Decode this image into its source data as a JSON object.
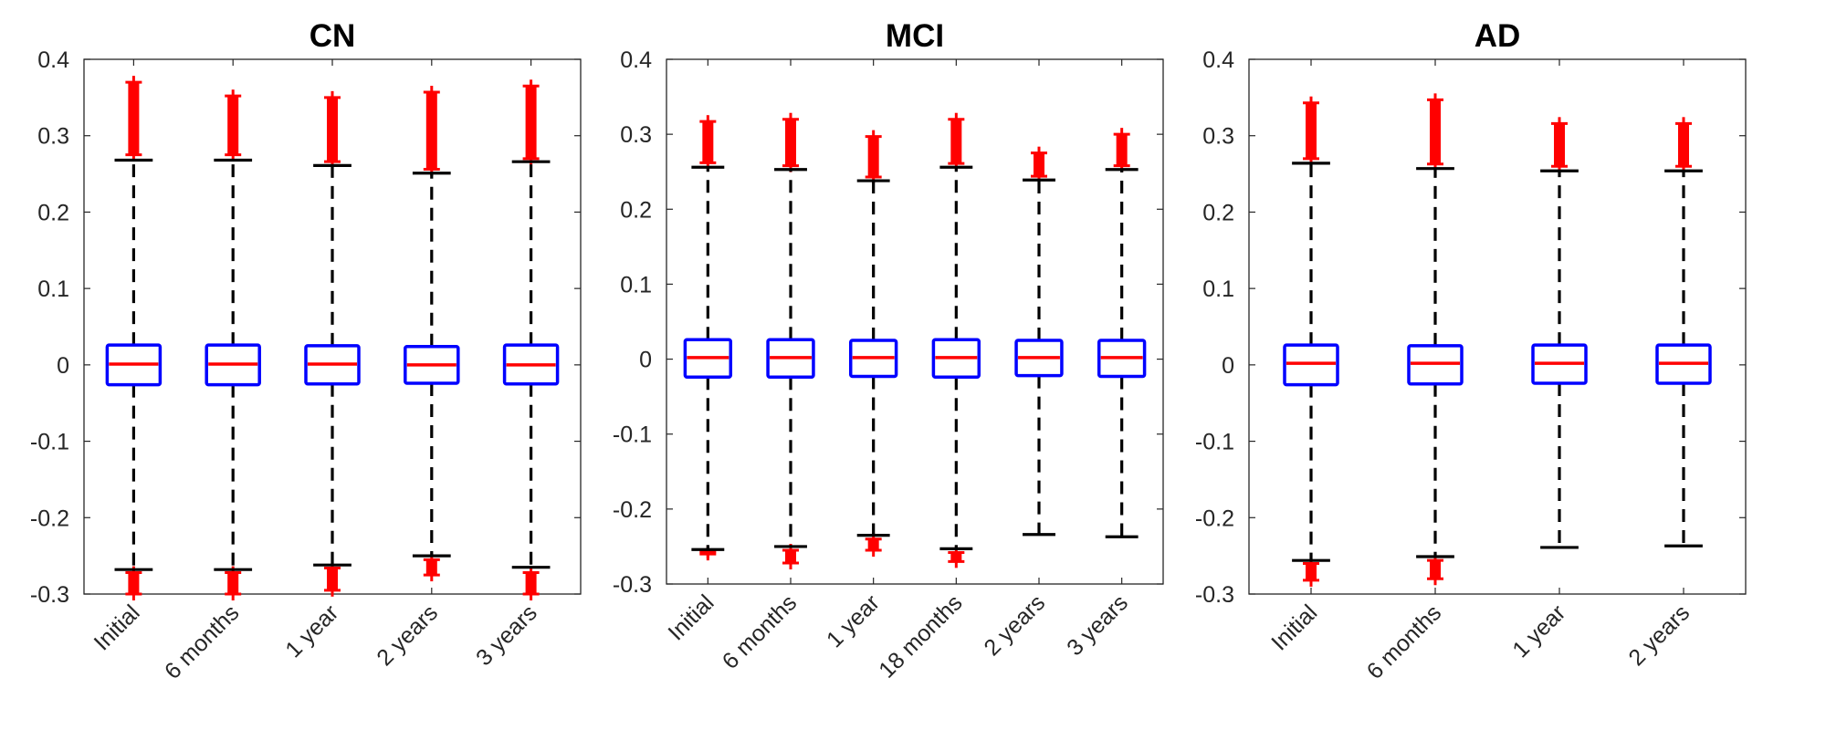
{
  "chart_data": [
    {
      "type": "boxplot",
      "title": "CN",
      "ylim": [
        -0.3,
        0.4
      ],
      "yticks": [
        "-0.3",
        "-0.2",
        "-0.1",
        "0",
        "0.1",
        "0.2",
        "0.3",
        "0.4"
      ],
      "categories": [
        "Initial",
        "6 months",
        "1 year",
        "2 years",
        "3 years"
      ],
      "boxes": [
        {
          "median": 0.001,
          "q1": -0.026,
          "q3": 0.026,
          "whisker_low": -0.268,
          "whisker_high": 0.268,
          "outliers_high": [
            0.275,
            0.37
          ],
          "outliers_low": [
            -0.272,
            -0.3
          ]
        },
        {
          "median": 0.001,
          "q1": -0.026,
          "q3": 0.026,
          "whisker_low": -0.268,
          "whisker_high": 0.268,
          "outliers_high": [
            0.275,
            0.352
          ],
          "outliers_low": [
            -0.272,
            -0.3
          ]
        },
        {
          "median": 0.001,
          "q1": -0.025,
          "q3": 0.025,
          "whisker_low": -0.262,
          "whisker_high": 0.261,
          "outliers_high": [
            0.266,
            0.35
          ],
          "outliers_low": [
            -0.266,
            -0.295
          ]
        },
        {
          "median": 0.0,
          "q1": -0.024,
          "q3": 0.024,
          "whisker_low": -0.25,
          "whisker_high": 0.251,
          "outliers_high": [
            0.256,
            0.357
          ],
          "outliers_low": [
            -0.255,
            -0.275
          ]
        },
        {
          "median": 0.0,
          "q1": -0.025,
          "q3": 0.026,
          "whisker_low": -0.265,
          "whisker_high": 0.266,
          "outliers_high": [
            0.27,
            0.365
          ],
          "outliers_low": [
            -0.272,
            -0.3
          ]
        }
      ]
    },
    {
      "type": "boxplot",
      "title": "MCI",
      "ylim": [
        -0.3,
        0.4
      ],
      "yticks": [
        "-0.3",
        "-0.2",
        "-0.1",
        "0",
        "0.1",
        "0.2",
        "0.3",
        "0.4"
      ],
      "categories": [
        "Initial",
        "6 months",
        "1 year",
        "18 months",
        "2 years",
        "3 years"
      ],
      "boxes": [
        {
          "median": 0.002,
          "q1": -0.024,
          "q3": 0.026,
          "whisker_low": -0.254,
          "whisker_high": 0.256,
          "outliers_high": [
            0.262,
            0.317
          ],
          "outliers_low": [
            -0.257,
            -0.26
          ]
        },
        {
          "median": 0.002,
          "q1": -0.024,
          "q3": 0.026,
          "whisker_low": -0.25,
          "whisker_high": 0.253,
          "outliers_high": [
            0.258,
            0.32
          ],
          "outliers_low": [
            -0.255,
            -0.272
          ]
        },
        {
          "median": 0.002,
          "q1": -0.023,
          "q3": 0.025,
          "whisker_low": -0.235,
          "whisker_high": 0.238,
          "outliers_high": [
            0.243,
            0.297
          ],
          "outliers_low": [
            -0.24,
            -0.255
          ]
        },
        {
          "median": 0.002,
          "q1": -0.024,
          "q3": 0.026,
          "whisker_low": -0.253,
          "whisker_high": 0.256,
          "outliers_high": [
            0.261,
            0.32
          ],
          "outliers_low": [
            -0.258,
            -0.27
          ]
        },
        {
          "median": 0.002,
          "q1": -0.022,
          "q3": 0.025,
          "whisker_low": -0.234,
          "whisker_high": 0.239,
          "outliers_high": [
            0.244,
            0.275
          ],
          "outliers_low": []
        },
        {
          "median": 0.002,
          "q1": -0.023,
          "q3": 0.025,
          "whisker_low": -0.237,
          "whisker_high": 0.253,
          "outliers_high": [
            0.258,
            0.3
          ],
          "outliers_low": []
        }
      ]
    },
    {
      "type": "boxplot",
      "title": "AD",
      "ylim": [
        -0.3,
        0.4
      ],
      "yticks": [
        "-0.3",
        "-0.2",
        "-0.1",
        "0",
        "0.1",
        "0.2",
        "0.3",
        "0.4"
      ],
      "categories": [
        "Initial",
        "6 months",
        "1 year",
        "2 years"
      ],
      "boxes": [
        {
          "median": 0.002,
          "q1": -0.026,
          "q3": 0.026,
          "whisker_low": -0.256,
          "whisker_high": 0.264,
          "outliers_high": [
            0.27,
            0.343
          ],
          "outliers_low": [
            -0.26,
            -0.282
          ]
        },
        {
          "median": 0.002,
          "q1": -0.025,
          "q3": 0.025,
          "whisker_low": -0.251,
          "whisker_high": 0.257,
          "outliers_high": [
            0.263,
            0.347
          ],
          "outliers_low": [
            -0.256,
            -0.28
          ]
        },
        {
          "median": 0.002,
          "q1": -0.024,
          "q3": 0.026,
          "whisker_low": -0.239,
          "whisker_high": 0.254,
          "outliers_high": [
            0.26,
            0.316
          ],
          "outliers_low": []
        },
        {
          "median": 0.002,
          "q1": -0.024,
          "q3": 0.026,
          "whisker_low": -0.237,
          "whisker_high": 0.254,
          "outliers_high": [
            0.26,
            0.316
          ],
          "outliers_low": []
        }
      ]
    }
  ],
  "colors": {
    "box": "#0000ff",
    "median": "#ff0000",
    "whisker": "#000000",
    "outlier": "#ff0000",
    "axis": "#262626"
  }
}
